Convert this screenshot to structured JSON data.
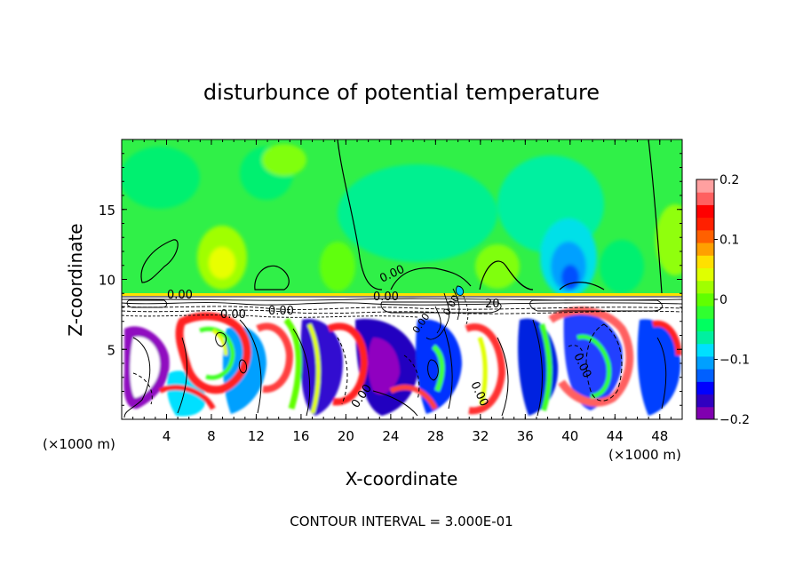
{
  "chart_data": {
    "type": "heatmap",
    "title": "disturbunce of potential temperature",
    "xlabel": "X-coordinate",
    "ylabel": "Z-coordinate",
    "x_unit_label": "(×1000 m)",
    "x_ticks": [
      4,
      8,
      12,
      16,
      20,
      24,
      28,
      32,
      36,
      40,
      44,
      48
    ],
    "y_ticks": [
      5,
      10,
      15
    ],
    "xlim": [
      0,
      50
    ],
    "ylim": [
      0,
      20
    ],
    "colorbar": {
      "ticks": [
        0.2,
        0.1,
        0,
        -0.1,
        -0.2
      ],
      "tick_labels": [
        "0.2",
        "0.1",
        "0",
        "−0.1",
        "−0.2"
      ],
      "range": [
        -0.2,
        0.2
      ],
      "colors": [
        "#8000b0",
        "#3000c0",
        "#0000ff",
        "#0060ff",
        "#00a0ff",
        "#00e0ff",
        "#00f0a0",
        "#00ff60",
        "#30ff30",
        "#60ff00",
        "#a0ff00",
        "#e0ff00",
        "#ffe000",
        "#ffa000",
        "#ff6000",
        "#ff2000",
        "#ff0000",
        "#ff6060",
        "#ffa0a0"
      ]
    },
    "contour_labels": [
      "0.00",
      "0.00",
      "0.00",
      "0.00",
      "0.00",
      "0.00",
      "0.00",
      "0.00",
      "0.00",
      "0.00",
      "20"
    ],
    "footer": "CONTOUR INTERVAL = 3.000E-01",
    "grid": false,
    "legend": "right"
  }
}
